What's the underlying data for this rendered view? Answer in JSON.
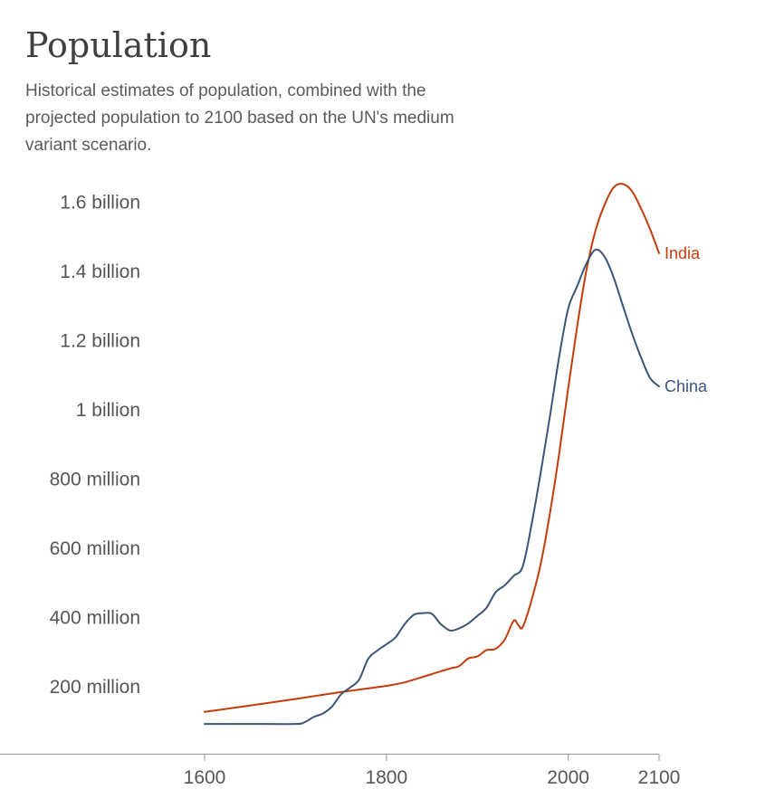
{
  "chart_data": {
    "type": "line",
    "title": "Population",
    "subtitle": "Historical estimates of population, combined with the projected population to 2100 based on the UN's medium variant scenario.",
    "xlabel": "",
    "ylabel": "",
    "xlim": [
      1600,
      2100
    ],
    "ylim": [
      0,
      1700
    ],
    "y_unit": "million",
    "x_ticks": [
      {
        "value": 1600,
        "label": "1600"
      },
      {
        "value": 1800,
        "label": "1800"
      },
      {
        "value": 2000,
        "label": "2000"
      },
      {
        "value": 2100,
        "label": "2100"
      }
    ],
    "y_ticks": [
      {
        "value": 200,
        "label": "200 million"
      },
      {
        "value": 400,
        "label": "400 million"
      },
      {
        "value": 600,
        "label": "600 million"
      },
      {
        "value": 800,
        "label": "800 million"
      },
      {
        "value": 1000,
        "label": "1 billion"
      },
      {
        "value": 1200,
        "label": "1.2 billion"
      },
      {
        "value": 1400,
        "label": "1.4 billion"
      },
      {
        "value": 1600,
        "label": "1.6 billion"
      }
    ],
    "grid": false,
    "legend": "inline labels at line ends",
    "series": [
      {
        "name": "India",
        "color": "#c43c0c",
        "x": [
          1600,
          1650,
          1700,
          1750,
          1800,
          1820,
          1850,
          1870,
          1880,
          1890,
          1900,
          1910,
          1920,
          1930,
          1940,
          1945,
          1950,
          1960,
          1970,
          1980,
          1990,
          2000,
          2010,
          2020,
          2030,
          2040,
          2050,
          2060,
          2070,
          2080,
          2090,
          2100
        ],
        "y": [
          125,
          143,
          162,
          182,
          200,
          210,
          234,
          250,
          257,
          279,
          285,
          303,
          307,
          333,
          388,
          376,
          370,
          450,
          555,
          700,
          870,
          1060,
          1240,
          1400,
          1515,
          1590,
          1640,
          1650,
          1630,
          1580,
          1520,
          1450
        ]
      },
      {
        "name": "China",
        "color": "#3a5577",
        "x": [
          1600,
          1650,
          1700,
          1710,
          1720,
          1730,
          1740,
          1750,
          1760,
          1770,
          1780,
          1790,
          1800,
          1810,
          1820,
          1830,
          1840,
          1850,
          1860,
          1870,
          1880,
          1890,
          1900,
          1910,
          1920,
          1930,
          1940,
          1950,
          1960,
          1970,
          1980,
          1990,
          2000,
          2010,
          2020,
          2030,
          2040,
          2050,
          2060,
          2070,
          2080,
          2090,
          2100
        ],
        "y": [
          90,
          90,
          90,
          95,
          110,
          120,
          140,
          175,
          195,
          218,
          278,
          302,
          320,
          340,
          378,
          405,
          410,
          408,
          378,
          360,
          366,
          380,
          402,
          425,
          470,
          490,
          518,
          545,
          670,
          820,
          980,
          1150,
          1290,
          1355,
          1420,
          1460,
          1440,
          1380,
          1300,
          1220,
          1150,
          1090,
          1065
        ]
      }
    ]
  }
}
